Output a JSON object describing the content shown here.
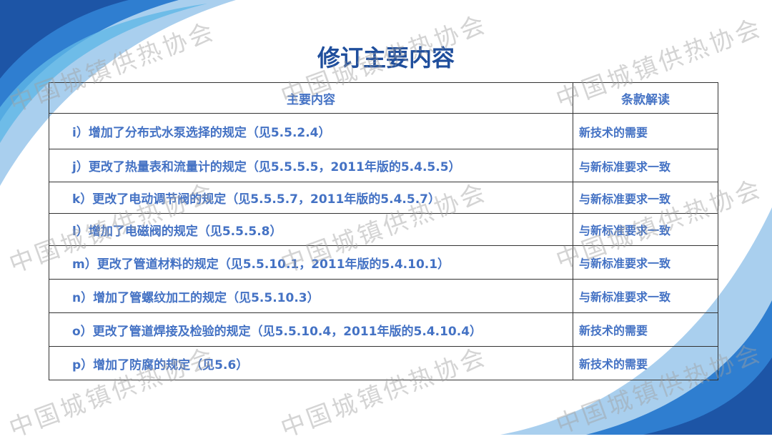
{
  "title": "修订主要内容",
  "watermark": "中国城镇供热协会",
  "colors": {
    "title": "#1f4e9c",
    "text": "#4472c4",
    "accent": "#2a6fc0"
  },
  "table": {
    "headers": [
      "主要内容",
      "条款解读"
    ],
    "rows": [
      {
        "content": "i）增加了分布式水泵选择的规定（见5.5.2.4）",
        "note": "新技术的需要"
      },
      {
        "content": "j）更改了热量表和流量计的规定（见5.5.5.5，2011年版的5.4.5.5）",
        "note": "与新标准要求一致"
      },
      {
        "content": "k）更改了电动调节阀的规定（见5.5.5.7，2011年版的5.4.5.7）",
        "note": "与新标准要求一致"
      },
      {
        "content": "l）增加了电磁阀的规定（见5.5.5.8）",
        "note": "与新标准要求一致"
      },
      {
        "content": "m）更改了管道材料的规定（见5.5.10.1，2011年版的5.4.10.1）",
        "note": "与新标准要求一致"
      },
      {
        "content": "n）增加了管螺纹加工的规定（见5.5.10.3）",
        "note": "与新标准要求一致"
      },
      {
        "content": "o）更改了管道焊接及检验的规定（见5.5.10.4，2011年版的5.4.10.4）",
        "note": "新技术的需要"
      },
      {
        "content": "p）增加了防腐的规定（见5.6）",
        "note": "新技术的需要"
      }
    ]
  }
}
